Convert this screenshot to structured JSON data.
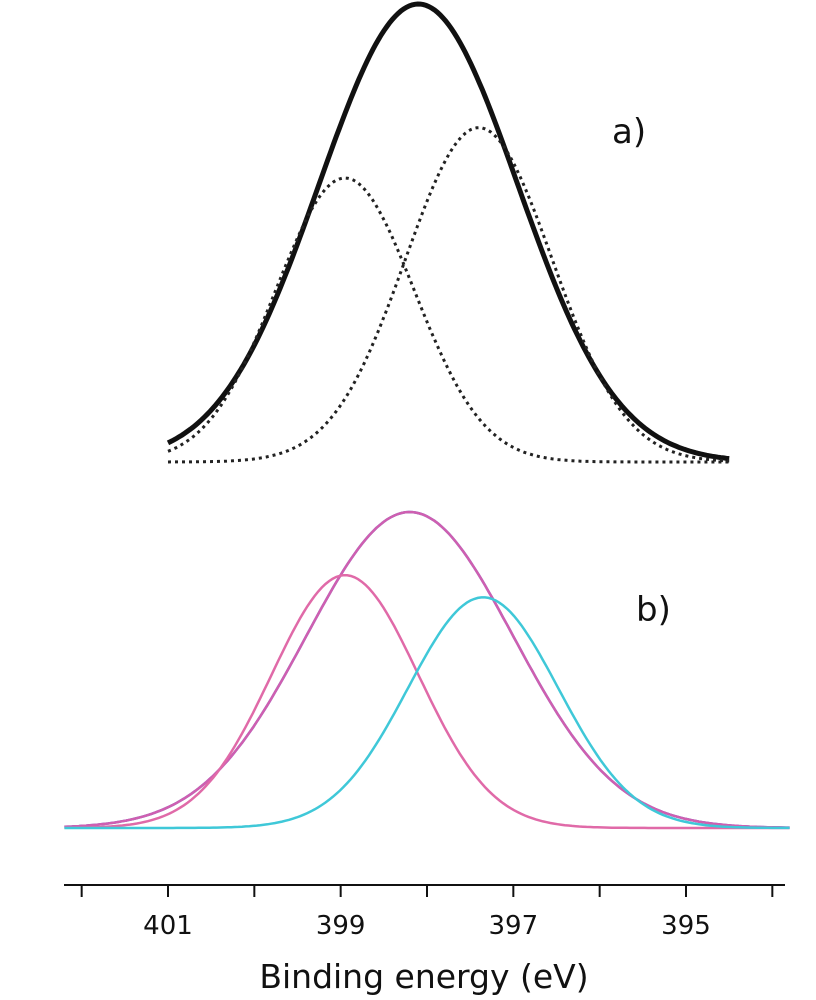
{
  "chart_data": {
    "type": "line",
    "xlabel": "Binding energy (eV)",
    "xlim": [
      402.2,
      393.8
    ],
    "x_reversed": true,
    "xticks": [
      401,
      399,
      397,
      395
    ],
    "xtick_labels": [
      "401",
      "399",
      "397",
      "395"
    ],
    "panels": [
      {
        "label": "a)",
        "x_range": [
          401.0,
          394.5
        ],
        "peaks": [
          {
            "center": 398.1,
            "height": 1.0,
            "width": 1.15,
            "style": "solid",
            "color": "#111111"
          },
          {
            "center": 398.95,
            "height": 0.62,
            "width": 0.8,
            "style": "dotted",
            "color": "#222222"
          },
          {
            "center": 397.4,
            "height": 0.73,
            "width": 0.85,
            "style": "dotted",
            "color": "#222222"
          }
        ]
      },
      {
        "label": "b)",
        "x_range": [
          402.2,
          393.8
        ],
        "peaks": [
          {
            "center": 398.2,
            "height": 1.0,
            "width": 1.2,
            "style": "solid",
            "color": "#3f5fd0"
          },
          {
            "center": 398.2,
            "height": 1.0,
            "width": 1.2,
            "style": "solid",
            "color": "#cf5fb0"
          },
          {
            "center": 398.95,
            "height": 0.8,
            "width": 0.85,
            "style": "solid",
            "color": "#e06aa8"
          },
          {
            "center": 397.35,
            "height": 0.73,
            "width": 0.87,
            "style": "solid",
            "color": "#3fc8d8"
          }
        ]
      }
    ]
  }
}
